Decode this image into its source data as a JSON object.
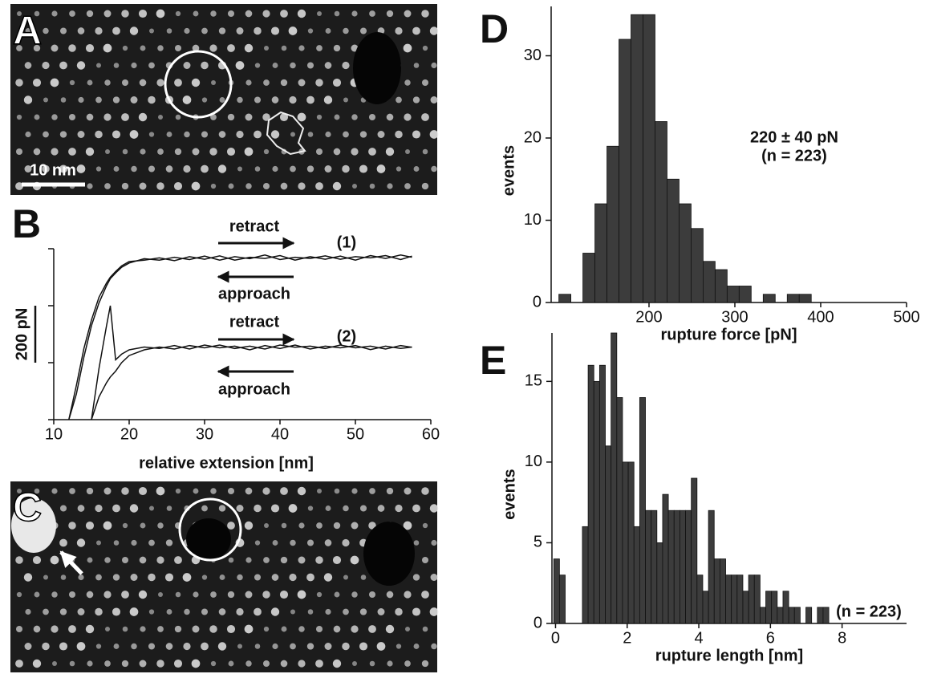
{
  "images": [
    {
      "label": "A",
      "scale_bar": "10 nm"
    },
    {
      "label": "C"
    }
  ],
  "chart_data": [
    {
      "type": "line",
      "label": "B",
      "x": [
        12,
        13,
        14,
        15,
        16,
        17,
        17.5,
        18.2,
        19,
        20,
        22,
        24,
        26,
        28,
        30,
        32,
        34,
        36,
        38,
        40,
        42,
        44,
        46,
        48,
        50,
        52,
        54,
        56,
        57.5
      ],
      "series": [
        {
          "color": "#111111",
          "values": [
            0,
            120,
            250,
            350,
            430,
            480,
            500,
            520,
            540,
            555,
            560,
            568,
            558,
            572,
            563,
            575,
            560,
            570,
            566,
            576,
            560,
            572,
            563,
            574,
            560,
            576,
            566,
            578,
            570
          ]
        },
        {
          "color": "#111111",
          "values": [
            0,
            90,
            220,
            330,
            410,
            470,
            495,
            515,
            535,
            550,
            565,
            560,
            570,
            562,
            574,
            560,
            572,
            565,
            578,
            562,
            570,
            566,
            575,
            563,
            572,
            568,
            576,
            562,
            574
          ]
        },
        {
          "color": "#111111",
          "values": [
            null,
            null,
            null,
            0,
            180,
            330,
            400,
            210,
            230,
            245,
            255,
            250,
            260,
            248,
            262,
            252,
            258,
            245,
            260,
            250,
            262,
            248,
            258,
            252,
            260,
            246,
            258,
            250,
            255
          ]
        },
        {
          "color": "#111111",
          "values": [
            null,
            null,
            null,
            0,
            80,
            130,
            150,
            170,
            200,
            225,
            245,
            255,
            248,
            260,
            252,
            262,
            250,
            258,
            248,
            262,
            254,
            258,
            250,
            262,
            252,
            258,
            248,
            260,
            254
          ]
        }
      ],
      "xlim": [
        10,
        60
      ],
      "xticks": [
        10,
        20,
        30,
        40,
        50,
        60
      ],
      "ylim": [
        0,
        600
      ],
      "yticks": [
        0,
        200,
        400,
        600
      ],
      "xlabel": "relative extension [nm]",
      "scale_bar": {
        "value": 200,
        "label": "200 pN"
      },
      "annotations": [
        "retract",
        "approach",
        "(1)",
        "retract",
        "approach",
        "(2)"
      ]
    },
    {
      "type": "histogram",
      "label": "D",
      "color": "#3c3c3c",
      "bins": [
        95,
        109,
        123,
        137,
        151,
        165,
        179,
        193,
        207,
        221,
        235,
        249,
        263,
        277,
        291,
        305,
        319,
        333,
        347,
        361,
        375,
        389
      ],
      "values": [
        1,
        0,
        6,
        12,
        19,
        32,
        35,
        35,
        22,
        15,
        12,
        9,
        5,
        4,
        2,
        2,
        0,
        1,
        0,
        1,
        1
      ],
      "xlim": [
        86,
        500
      ],
      "xticks": [
        200,
        300,
        400,
        500
      ],
      "ylim": [
        0,
        36
      ],
      "yticks": [
        0,
        10,
        20,
        30
      ],
      "xlabel": "rupture force [pN]",
      "ylabel": "events",
      "annotations": [
        "220 ± 40 pN",
        "(n = 223)"
      ]
    },
    {
      "type": "histogram",
      "label": "E",
      "color": "#3c3c3c",
      "bins": [
        -0.05,
        0.11,
        0.27,
        0.43,
        0.59,
        0.75,
        0.91,
        1.07,
        1.23,
        1.39,
        1.55,
        1.71,
        1.87,
        2.03,
        2.19,
        2.35,
        2.51,
        2.67,
        2.83,
        2.99,
        3.15,
        3.31,
        3.47,
        3.63,
        3.79,
        3.95,
        4.11,
        4.27,
        4.43,
        4.59,
        4.75,
        4.91,
        5.07,
        5.23,
        5.39,
        5.55,
        5.71,
        5.87,
        6.03,
        6.19,
        6.35,
        6.51,
        6.67,
        6.83,
        6.99,
        7.15,
        7.31,
        7.47,
        7.63
      ],
      "values": [
        4,
        3,
        0,
        0,
        0,
        6,
        16,
        15,
        16,
        11,
        18,
        14,
        10,
        10,
        6,
        14,
        7,
        7,
        5,
        8,
        7,
        7,
        7,
        7,
        9,
        3,
        2,
        7,
        4,
        4,
        3,
        3,
        3,
        2,
        3,
        3,
        1,
        2,
        2,
        1,
        2,
        1,
        1,
        0,
        1,
        0,
        1,
        1
      ],
      "xlim": [
        -0.1,
        9.8
      ],
      "xticks": [
        0,
        2,
        4,
        6,
        8
      ],
      "ylim": [
        0,
        18
      ],
      "yticks": [
        0,
        5,
        10,
        15
      ],
      "xlabel": "rupture length [nm]",
      "ylabel": "events",
      "annotations": [
        "(n = 223)"
      ]
    }
  ]
}
